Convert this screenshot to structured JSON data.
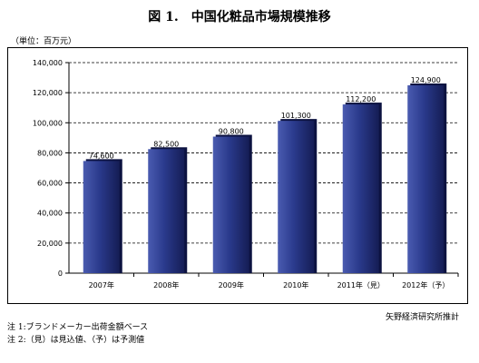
{
  "title": "図 1.　中国化粧品市場規模推移",
  "unit_label": "（単位：百万元）",
  "source": "矢野経済研究所推計",
  "notes": [
    "注 1:ブランドメーカー出荷金額ベース",
    "注 2:（見）は見込値、（予）は予測値"
  ],
  "colors": {
    "bar": "#2a3a8c",
    "bar_dark": "#151d55",
    "bar_light": "#4a5bb0"
  },
  "chart_data": {
    "type": "bar",
    "categories": [
      "2007年",
      "2008年",
      "2009年",
      "2010年",
      "2011年（見）",
      "2012年（予）"
    ],
    "values": [
      74600,
      82500,
      90800,
      101300,
      112200,
      124900
    ],
    "value_labels": [
      "74,600",
      "82,500",
      "90,800",
      "101,300",
      "112,200",
      "124,900"
    ],
    "yticks": [
      "0",
      "20,000",
      "40,000",
      "60,000",
      "80,000",
      "100,000",
      "120,000",
      "140,000"
    ],
    "ylim": [
      0,
      140000
    ],
    "grid": "dashed horizontal"
  }
}
